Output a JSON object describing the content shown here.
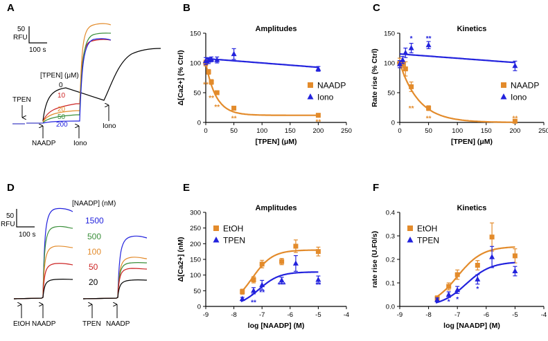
{
  "panel_labels": {
    "a": "A",
    "b": "B",
    "c": "C",
    "d": "D",
    "e": "E",
    "f": "F"
  },
  "colors": {
    "orange": "#e38b2b",
    "blue": "#2222dd",
    "black": "#000000",
    "red": "#cc2222",
    "green": "#3a8f3a"
  },
  "trace_a": {
    "scale_y": "50",
    "scale_y_unit": "RFU",
    "scale_x": "100 s",
    "legend_title": "[TPEN] (μM)",
    "legend_values": [
      "0",
      "10",
      "20",
      "50",
      "200"
    ],
    "arrows": [
      "TPEN",
      "NAADP",
      "Iono",
      "Iono"
    ]
  },
  "trace_d": {
    "scale_y": "50",
    "scale_y_unit": "RFU",
    "scale_x": "100 s",
    "legend_title": "[NAADP] (nM)",
    "legend_values": [
      "1500",
      "500",
      "100",
      "50",
      "20"
    ],
    "arrows": [
      "EtOH",
      "NAADP",
      "TPEN",
      "NAADP"
    ]
  },
  "chart_data": [
    {
      "id": "B",
      "type": "scatter",
      "title": "Amplitudes",
      "xlabel": "[TPEN] (μM)",
      "ylabel": "Δ[Ca2+] (% Ctrl)",
      "xlim": [
        0,
        250
      ],
      "ylim": [
        0,
        150
      ],
      "xticks": [
        0,
        50,
        100,
        150,
        200,
        250
      ],
      "yticks": [
        0,
        50,
        100,
        150
      ],
      "series": [
        {
          "name": "NAADP",
          "color": "#e38b2b",
          "marker": "square",
          "x": [
            0,
            5,
            10,
            20,
            50,
            200
          ],
          "y": [
            100,
            85,
            68,
            50,
            24,
            12
          ],
          "err": [
            5,
            4,
            4,
            3,
            3,
            2
          ],
          "fit": "decay",
          "fit_params": {
            "top": 100,
            "bottom": 12,
            "k": 0.055
          }
        },
        {
          "name": "Iono",
          "color": "#2222dd",
          "marker": "triangle",
          "x": [
            0,
            5,
            10,
            20,
            50,
            200
          ],
          "y": [
            103,
            104,
            106,
            105,
            115,
            90
          ],
          "err": [
            6,
            5,
            4,
            5,
            9,
            4
          ],
          "fit": "linear"
        }
      ],
      "annotations": [
        {
          "text": "**",
          "x": 0,
          "y": 60,
          "color": "#e38b2b"
        },
        {
          "text": "**",
          "x": 10,
          "y": 37,
          "color": "#e38b2b"
        },
        {
          "text": "**",
          "x": 20,
          "y": 22,
          "color": "#e38b2b"
        },
        {
          "text": "**",
          "x": 50,
          "y": 3,
          "color": "#e38b2b"
        },
        {
          "text": "**",
          "x": 200,
          "y": -3,
          "color": "#e38b2b"
        }
      ]
    },
    {
      "id": "C",
      "type": "scatter",
      "title": "Kinetics",
      "xlabel": "[TPEN] (μM)",
      "ylabel": "Rate rise (% Ctrl)",
      "xlim": [
        0,
        250
      ],
      "ylim": [
        0,
        150
      ],
      "xticks": [
        0,
        50,
        100,
        150,
        200,
        250
      ],
      "yticks": [
        0,
        50,
        100,
        150
      ],
      "series": [
        {
          "name": "NAADP",
          "color": "#e38b2b",
          "marker": "square",
          "x": [
            0,
            5,
            10,
            20,
            50,
            200
          ],
          "y": [
            100,
            98,
            90,
            60,
            24,
            2
          ],
          "err": [
            8,
            6,
            12,
            8,
            4,
            2
          ],
          "fit": "decay",
          "fit_params": {
            "top": 100,
            "bottom": 0,
            "k": 0.03
          }
        },
        {
          "name": "Iono",
          "color": "#2222dd",
          "marker": "triangle",
          "x": [
            0,
            5,
            10,
            20,
            50,
            200
          ],
          "y": [
            98,
            105,
            117,
            125,
            130,
            95
          ],
          "err": [
            6,
            6,
            8,
            8,
            6,
            8
          ],
          "fit": "linear"
        }
      ],
      "annotations": [
        {
          "text": "*",
          "x": 20,
          "y": 137,
          "color": "#2222dd"
        },
        {
          "text": "**",
          "x": 50,
          "y": 137,
          "color": "#2222dd"
        },
        {
          "text": "**",
          "x": 20,
          "y": 20,
          "color": "#e38b2b"
        },
        {
          "text": "**",
          "x": 50,
          "y": 3,
          "color": "#e38b2b"
        },
        {
          "text": "**",
          "x": 200,
          "y": 3,
          "color": "#e38b2b"
        }
      ]
    },
    {
      "id": "E",
      "type": "scatter",
      "title": "Amplitudes",
      "xlabel": "log [NAADP] (M)",
      "ylabel": "Δ[Ca2+] (nM)",
      "xlim": [
        -9,
        -4
      ],
      "ylim": [
        0,
        300
      ],
      "xticks": [
        -9,
        -8,
        -7,
        -6,
        -5,
        -4
      ],
      "yticks": [
        0,
        50,
        100,
        150,
        200,
        250,
        300
      ],
      "series": [
        {
          "name": "EtOH",
          "color": "#e38b2b",
          "marker": "square",
          "x": [
            -7.7,
            -7.3,
            -7.0,
            -6.3,
            -5.8,
            -5.0
          ],
          "y": [
            47,
            85,
            135,
            143,
            192,
            175
          ],
          "err": [
            8,
            10,
            12,
            10,
            20,
            14
          ],
          "fit": "sigmoid",
          "fit_params": {
            "bottom": 0,
            "top": 180,
            "ec50": -7.35,
            "hill": 1.2
          }
        },
        {
          "name": "TPEN",
          "color": "#2222dd",
          "marker": "triangle",
          "x": [
            -7.7,
            -7.3,
            -7.0,
            -6.3,
            -5.8,
            -5.0
          ],
          "y": [
            24,
            50,
            68,
            83,
            137,
            85
          ],
          "err": [
            5,
            10,
            15,
            10,
            25,
            12
          ],
          "fit": "sigmoid",
          "fit_params": {
            "bottom": 0,
            "top": 110,
            "ec50": -7.1,
            "hill": 1.2
          }
        }
      ],
      "annotations": [
        {
          "text": "**",
          "x": -7.3,
          "y": 5,
          "color": "#2222dd"
        },
        {
          "text": "**",
          "x": -7.0,
          "y": 37,
          "color": "#2222dd"
        },
        {
          "text": "***",
          "x": -6.3,
          "y": 62,
          "color": "#2222dd"
        },
        {
          "text": "**",
          "x": -5.0,
          "y": 62,
          "color": "#2222dd"
        }
      ]
    },
    {
      "id": "F",
      "type": "scatter",
      "title": "Kinetics",
      "xlabel": "log [NAADP] (M)",
      "ylabel": "rate rise (U.F0/s)",
      "xlim": [
        -9,
        -4
      ],
      "ylim": [
        0,
        0.4
      ],
      "xticks": [
        -9,
        -8,
        -7,
        -6,
        -5,
        -4
      ],
      "yticks": [
        0.0,
        0.1,
        0.2,
        0.3,
        0.4
      ],
      "series": [
        {
          "name": "EtOH",
          "color": "#e38b2b",
          "marker": "square",
          "x": [
            -7.7,
            -7.3,
            -7.0,
            -6.3,
            -5.8,
            -5.0
          ],
          "y": [
            0.035,
            0.085,
            0.135,
            0.175,
            0.295,
            0.215
          ],
          "err": [
            0.01,
            0.015,
            0.02,
            0.02,
            0.06,
            0.03
          ],
          "fit": "sigmoid",
          "fit_params": {
            "bottom": 0,
            "top": 0.255,
            "ec50": -7.0,
            "hill": 1.0
          }
        },
        {
          "name": "TPEN",
          "color": "#2222dd",
          "marker": "triangle",
          "x": [
            -7.7,
            -7.3,
            -7.0,
            -6.3,
            -5.8,
            -5.0
          ],
          "y": [
            0.028,
            0.05,
            0.07,
            0.115,
            0.21,
            0.15
          ],
          "err": [
            0.008,
            0.012,
            0.015,
            0.02,
            0.045,
            0.02
          ],
          "fit": "sigmoid",
          "fit_params": {
            "bottom": 0,
            "top": 0.19,
            "ec50": -6.7,
            "hill": 1.0
          }
        }
      ],
      "annotations": [
        {
          "text": "*",
          "x": -7.3,
          "y": 0.01,
          "color": "#2222dd"
        },
        {
          "text": "*",
          "x": -7.0,
          "y": 0.02,
          "color": "#2222dd"
        },
        {
          "text": "*",
          "x": -6.3,
          "y": 0.065,
          "color": "#2222dd"
        }
      ]
    }
  ]
}
